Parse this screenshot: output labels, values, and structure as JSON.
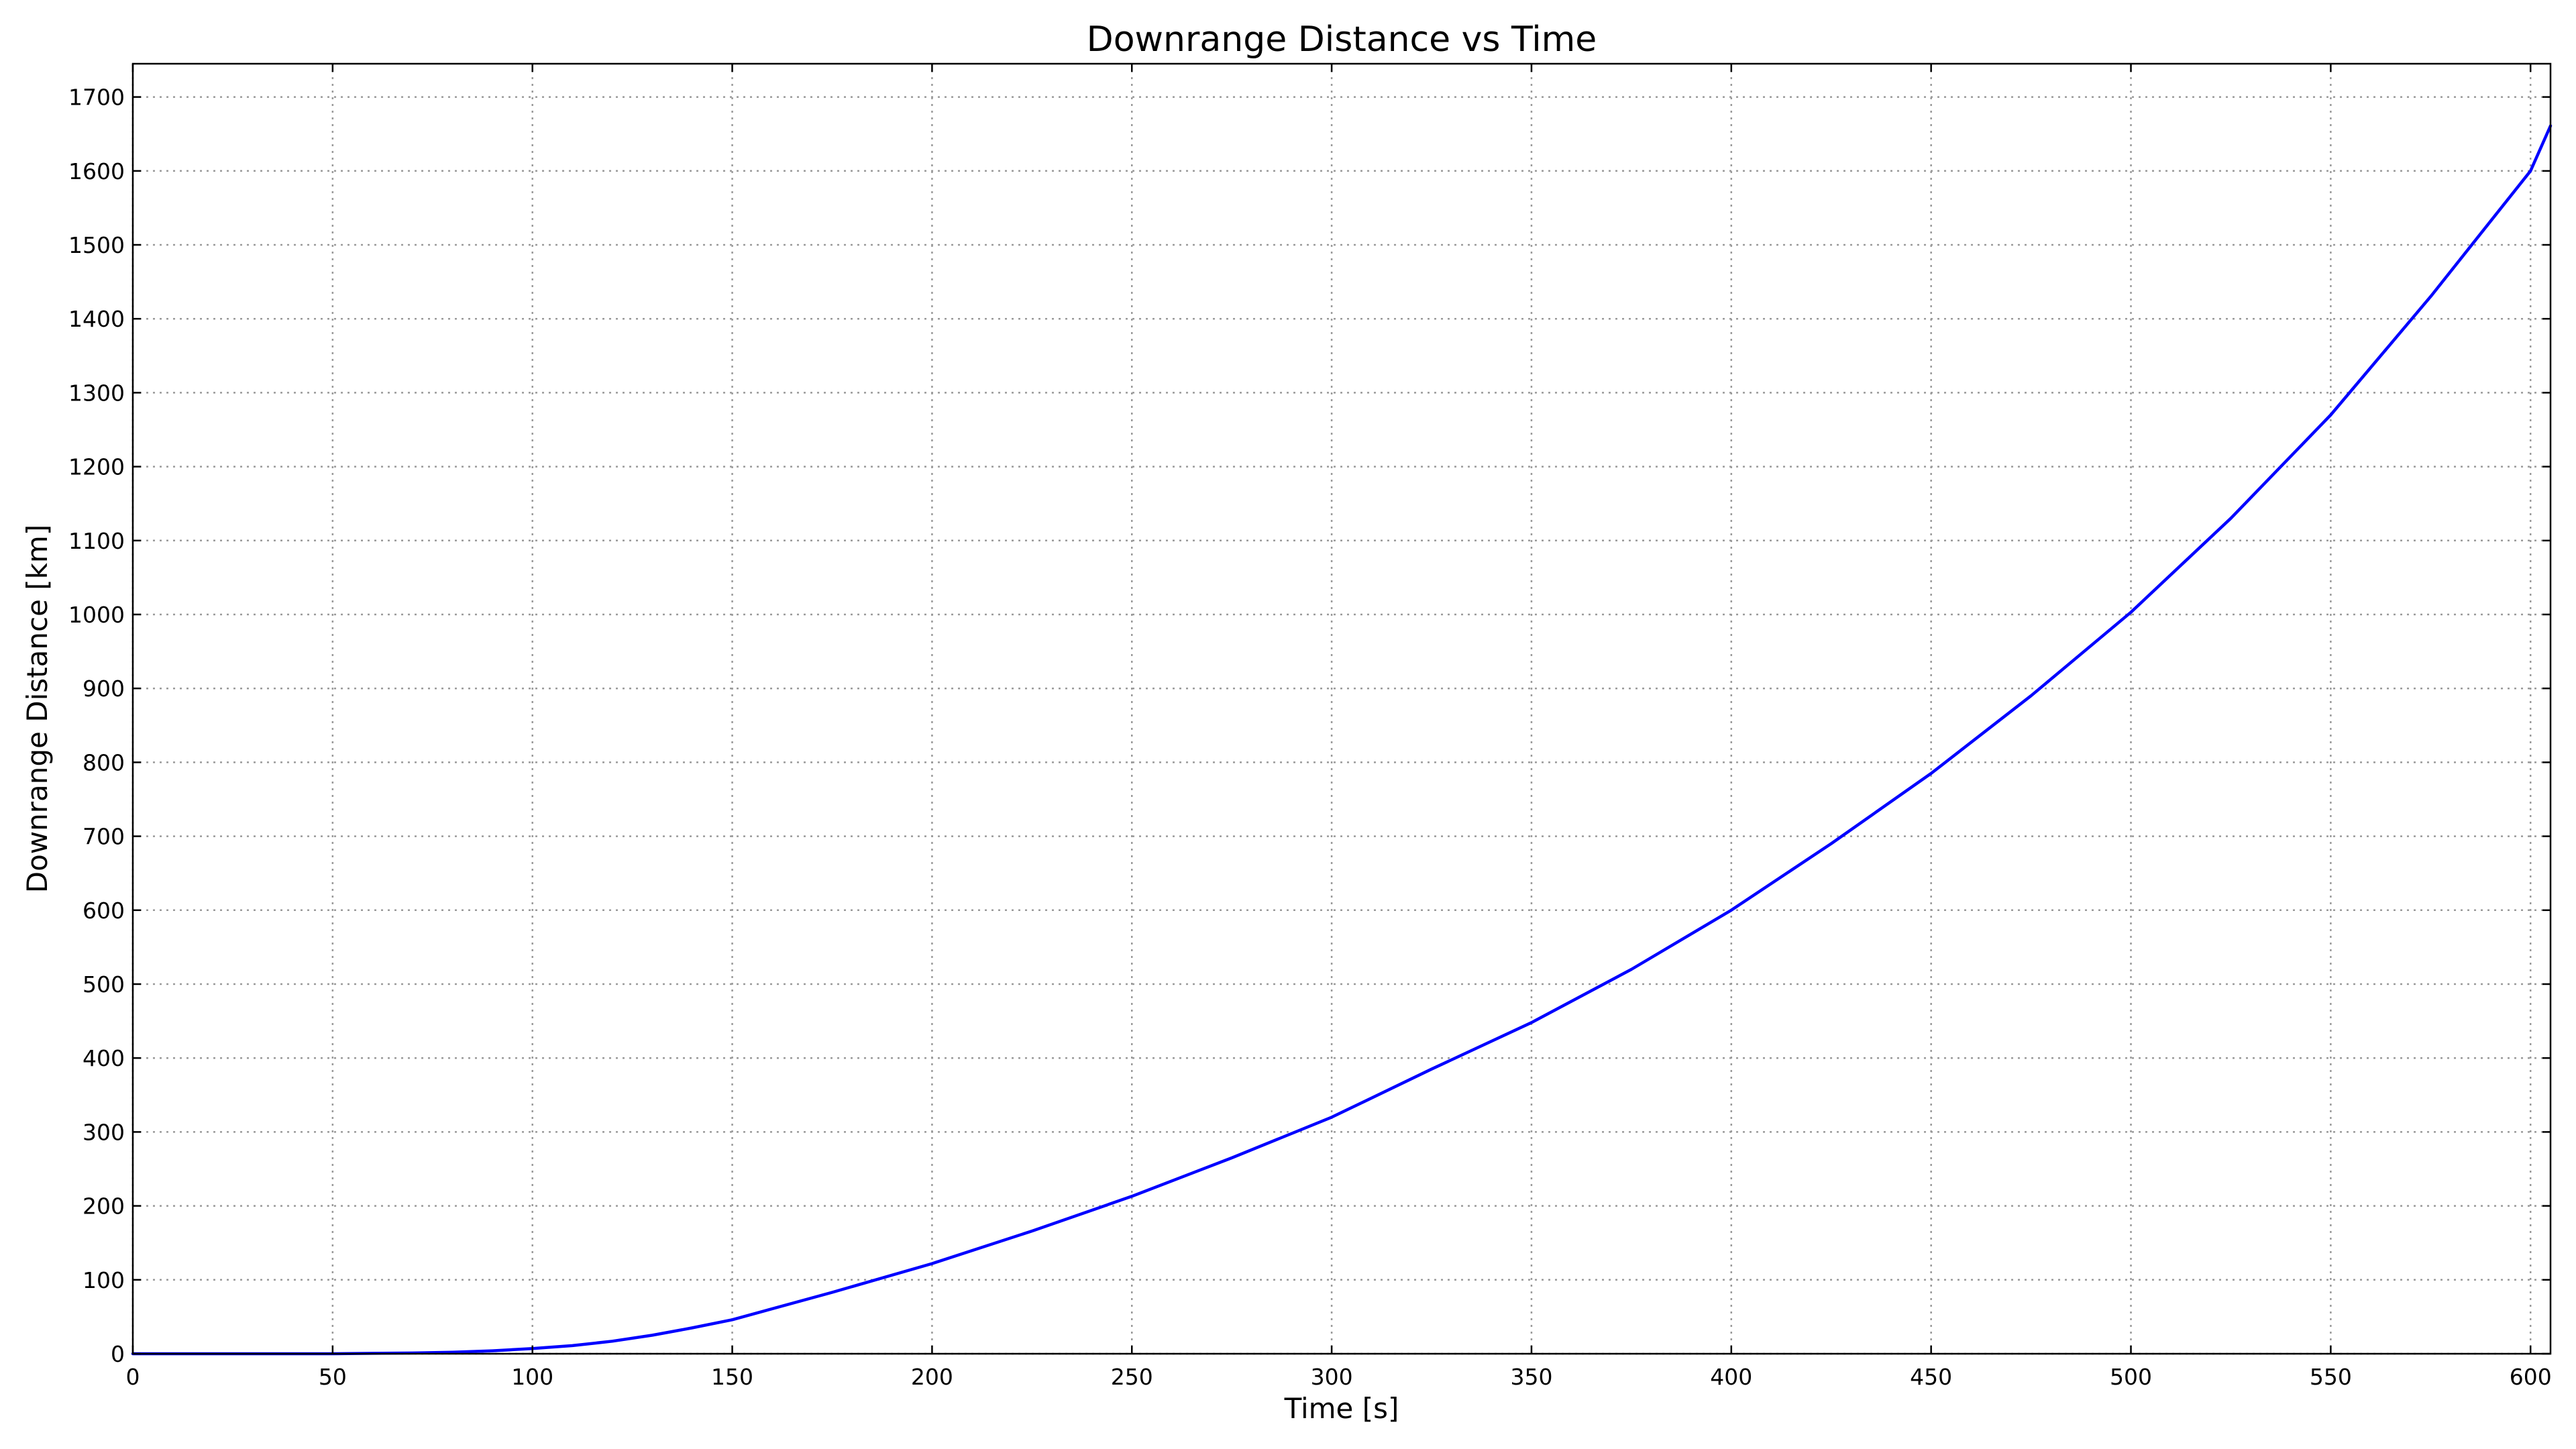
{
  "chart_data": {
    "type": "line",
    "title": "Downrange Distance vs Time",
    "xlabel": "Time [s]",
    "ylabel": "Downrange Distance [km]",
    "xlim": [
      0,
      605
    ],
    "ylim": [
      0,
      1745
    ],
    "xticks": [
      0,
      50,
      100,
      150,
      200,
      250,
      300,
      350,
      400,
      450,
      500,
      550,
      600
    ],
    "yticks": [
      0,
      100,
      200,
      300,
      400,
      500,
      600,
      700,
      800,
      900,
      1000,
      1100,
      1200,
      1300,
      1400,
      1500,
      1600,
      1700
    ],
    "grid": true,
    "series": [
      {
        "color": "#0000ff",
        "x": [
          0,
          25,
          50,
          60,
          70,
          80,
          90,
          100,
          110,
          120,
          130,
          140,
          150,
          175,
          200,
          225,
          250,
          275,
          300,
          325,
          350,
          375,
          400,
          425,
          450,
          475,
          500,
          525,
          550,
          575,
          600,
          605
        ],
        "y": [
          0,
          0,
          0,
          0.5,
          1,
          2,
          4,
          7,
          11,
          17,
          25,
          35,
          46,
          83,
          122,
          166,
          213,
          265,
          320,
          385,
          448,
          520,
          600,
          690,
          785,
          890,
          1003,
          1130,
          1270,
          1430,
          1600,
          1661
        ]
      }
    ]
  }
}
